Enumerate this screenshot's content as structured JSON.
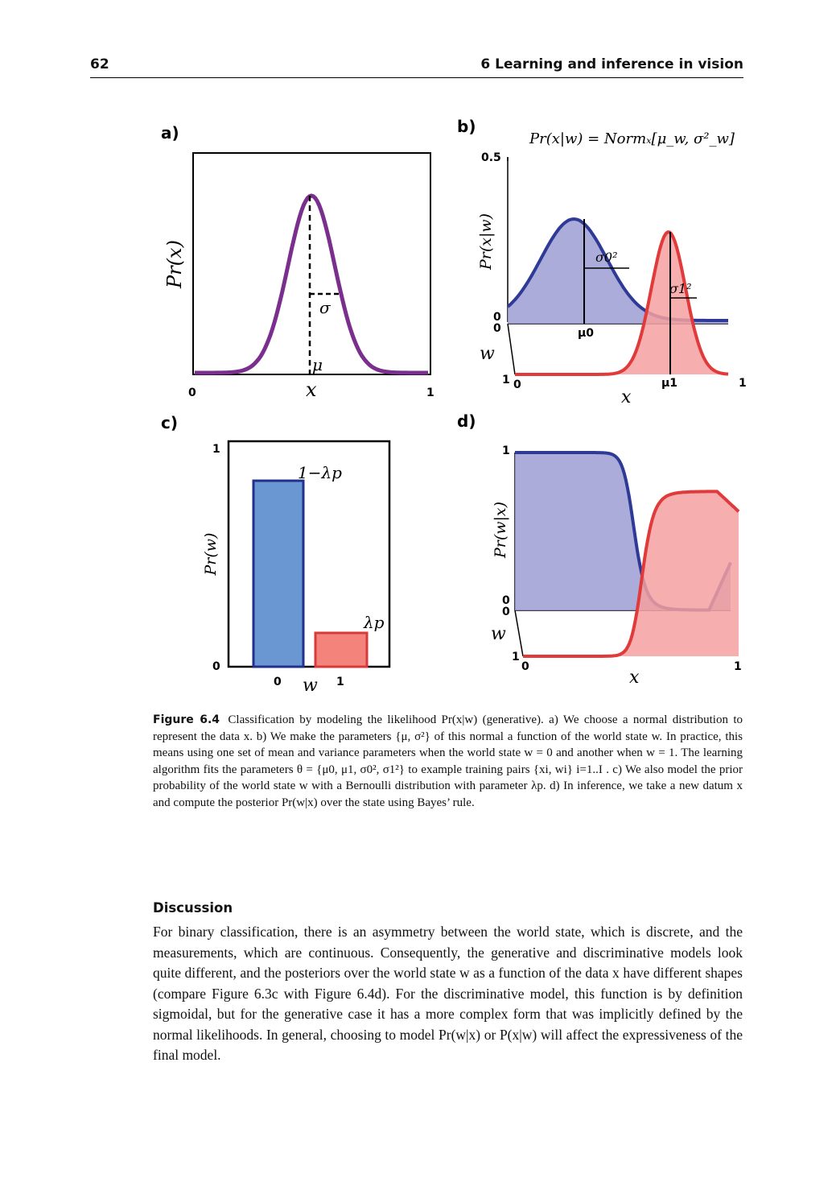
{
  "header": {
    "page_number": "62",
    "chapter": "6 Learning and inference in vision"
  },
  "figure": {
    "panel_a": {
      "letter": "a)",
      "ylabel": "Pr(x)",
      "xlabel": "x",
      "x_min": "0",
      "x_max": "1",
      "mu_label": "μ",
      "sigma_label": "σ",
      "line_color": "#7a2e8e"
    },
    "panel_b": {
      "letter": "b)",
      "title": "Pr(x|w) = Normₓ[μ_w, σ²_w]",
      "ylabel": "Pr(x|w)",
      "xlabel": "x",
      "wlabel": "w",
      "y_top": "0.5",
      "y_zero": "0",
      "w0": "0",
      "w1": "1",
      "x_min": "0",
      "x_max": "1",
      "mu0": "μ0",
      "mu1": "μ1",
      "s0": "σ0²",
      "s1": "σ1²",
      "blue": "#2e3a96",
      "red": "#e03a3a"
    },
    "panel_c": {
      "letter": "c)",
      "ylabel": "Pr(w)",
      "xlabel": "w",
      "y_top": "1",
      "y_zero": "0",
      "label_one_minus": "1−λp",
      "label_lambda": "λp"
    },
    "panel_d": {
      "letter": "d)",
      "ylabel": "Pr(w|x)",
      "xlabel": "x",
      "wlabel": "w",
      "y_top": "1",
      "y_zero": "0",
      "w0": "0",
      "w1": "1",
      "x_min": "0",
      "x_max": "1"
    }
  },
  "chart_data": [
    {
      "type": "line",
      "panel": "a",
      "xlabel": "x",
      "ylabel": "Pr(x)",
      "xlim": [
        0,
        1
      ],
      "series": [
        {
          "kind": "normal",
          "mean": 0.5,
          "sd": 0.1
        }
      ]
    },
    {
      "type": "area",
      "panel": "b",
      "xlabel": "x",
      "ylabel": "Pr(x|w)",
      "xlim": [
        0,
        1
      ],
      "ylim": [
        0,
        0.5
      ],
      "series": [
        {
          "w": 0,
          "kind": "normal",
          "mean": 0.3,
          "sd": 0.15
        },
        {
          "w": 1,
          "kind": "normal",
          "mean": 0.72,
          "sd": 0.08
        }
      ]
    },
    {
      "type": "bar",
      "panel": "c",
      "xlabel": "w",
      "ylabel": "Pr(w)",
      "categories": [
        "0",
        "1"
      ],
      "values": [
        0.82,
        0.15
      ],
      "ylim": [
        0,
        1
      ]
    },
    {
      "type": "area",
      "panel": "d",
      "xlabel": "x",
      "ylabel": "Pr(w|x)",
      "xlim": [
        0,
        1
      ],
      "ylim": [
        0,
        1
      ],
      "series": [
        {
          "w": 0,
          "kind": "posterior"
        },
        {
          "w": 1,
          "kind": "posterior"
        }
      ]
    }
  ],
  "caption": {
    "label": "Figure 6.4",
    "text": "Classification by modeling the likelihood Pr(x|w) (generative). a) We choose a normal distribution to represent the data x. b) We make the parameters {μ, σ²} of this normal a function of the world state w. In practice, this means using one set of mean and variance parameters when the world state w = 0 and another when w = 1. The learning algorithm fits the parameters θ = {μ0, μ1, σ0², σ1²} to example training pairs {xi, wi} i=1..I . c) We also model the prior probability of the world state w with a Bernoulli distribution with parameter λp. d) In inference, we take a new datum x and compute the posterior Pr(w|x) over the state using Bayes’ rule."
  },
  "section": {
    "title": "Discussion",
    "body": "For binary classification, there is an asymmetry between the world state, which is discrete, and the measurements, which are continuous. Consequently, the generative and discriminative models look quite different, and the posteriors over the world state w as a function of the data x have different shapes (compare Figure 6.3c with Figure 6.4d). For the discriminative model, this function is by definition sigmoidal, but for the generative case it has a more complex form that was implicitly defined by the normal likelihoods. In general, choosing to model Pr(w|x) or P(x|w) will affect the expressiveness of the final model."
  }
}
